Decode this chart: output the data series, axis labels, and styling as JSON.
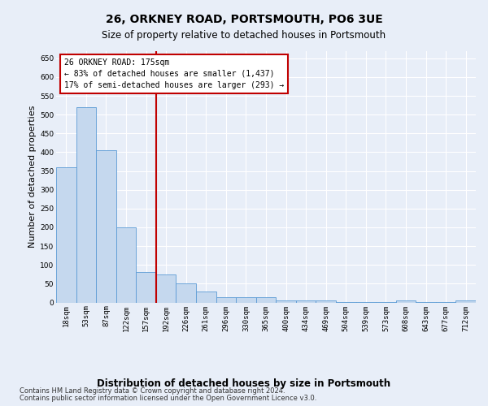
{
  "title": "26, ORKNEY ROAD, PORTSMOUTH, PO6 3UE",
  "subtitle": "Size of property relative to detached houses in Portsmouth",
  "xlabel": "Distribution of detached houses by size in Portsmouth",
  "ylabel": "Number of detached properties",
  "categories": [
    "18sqm",
    "53sqm",
    "87sqm",
    "122sqm",
    "157sqm",
    "192sqm",
    "226sqm",
    "261sqm",
    "296sqm",
    "330sqm",
    "365sqm",
    "400sqm",
    "434sqm",
    "469sqm",
    "504sqm",
    "539sqm",
    "573sqm",
    "608sqm",
    "643sqm",
    "677sqm",
    "712sqm"
  ],
  "values": [
    360,
    520,
    405,
    200,
    80,
    75,
    50,
    30,
    15,
    15,
    15,
    5,
    5,
    5,
    1,
    1,
    1,
    5,
    1,
    1,
    5
  ],
  "bar_color": "#c5d8ee",
  "bar_edge_color": "#5b9bd5",
  "vline_color": "#c00000",
  "vline_pos": 4.5,
  "annotation_line1": "26 ORKNEY ROAD: 175sqm",
  "annotation_line2": "← 83% of detached houses are smaller (1,437)",
  "annotation_line3": "17% of semi-detached houses are larger (293) →",
  "footnote1": "Contains HM Land Registry data © Crown copyright and database right 2024.",
  "footnote2": "Contains public sector information licensed under the Open Government Licence v3.0.",
  "ylim": [
    0,
    670
  ],
  "yticks": [
    0,
    50,
    100,
    150,
    200,
    250,
    300,
    350,
    400,
    450,
    500,
    550,
    600,
    650
  ],
  "background_color": "#e8eef8",
  "plot_bg_color": "#e8eef8",
  "grid_color": "#ffffff",
  "title_fontsize": 10,
  "subtitle_fontsize": 8.5,
  "ylabel_fontsize": 8,
  "xlabel_fontsize": 8.5,
  "tick_fontsize": 6.5,
  "annot_fontsize": 7,
  "footnote_fontsize": 6
}
